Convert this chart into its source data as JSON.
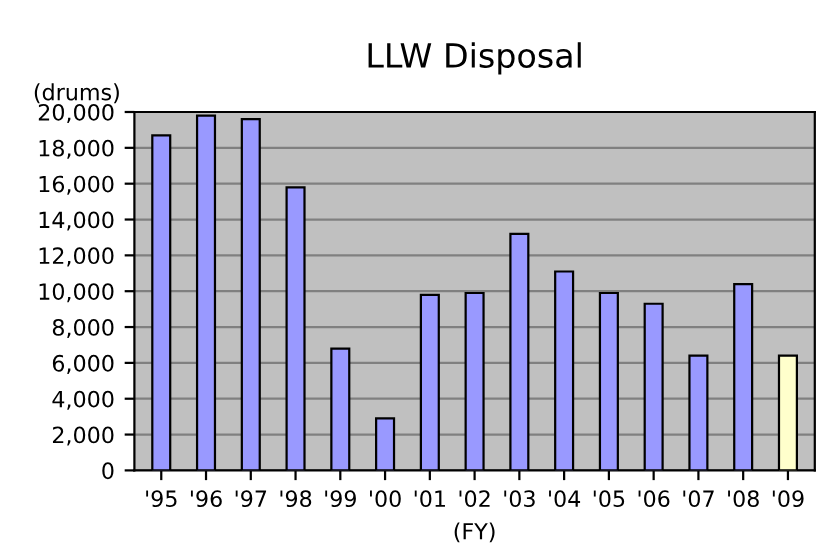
{
  "chart_data": {
    "type": "bar",
    "title": "LLW Disposal",
    "ylabel": "(drums)",
    "xlabel": "(FY)",
    "categories": [
      "'95",
      "'96",
      "'97",
      "'98",
      "'99",
      "'00",
      "'01",
      "'02",
      "'03",
      "'04",
      "'05",
      "'06",
      "'07",
      "'08",
      "'09"
    ],
    "values": [
      18700,
      19800,
      19600,
      15800,
      6800,
      2900,
      9800,
      9900,
      13200,
      11100,
      9900,
      9300,
      6400,
      10400,
      6400
    ],
    "colors": [
      "#9999ff",
      "#9999ff",
      "#9999ff",
      "#9999ff",
      "#9999ff",
      "#9999ff",
      "#9999ff",
      "#9999ff",
      "#9999ff",
      "#9999ff",
      "#9999ff",
      "#9999ff",
      "#9999ff",
      "#9999ff",
      "#ffffcc"
    ],
    "ylim": [
      0,
      20000
    ],
    "yticks": [
      {
        "value": 0,
        "label": "0"
      },
      {
        "value": 2000,
        "label": "2,000"
      },
      {
        "value": 4000,
        "label": "4,000"
      },
      {
        "value": 6000,
        "label": "6,000"
      },
      {
        "value": 8000,
        "label": "8,000"
      },
      {
        "value": 10000,
        "label": "10,000"
      },
      {
        "value": 12000,
        "label": "12,000"
      },
      {
        "value": 14000,
        "label": "14,000"
      },
      {
        "value": 16000,
        "label": "16,000"
      },
      {
        "value": 18000,
        "label": "18,000"
      },
      {
        "value": 20000,
        "label": "20,000"
      }
    ],
    "grid": "y",
    "legend": false
  }
}
